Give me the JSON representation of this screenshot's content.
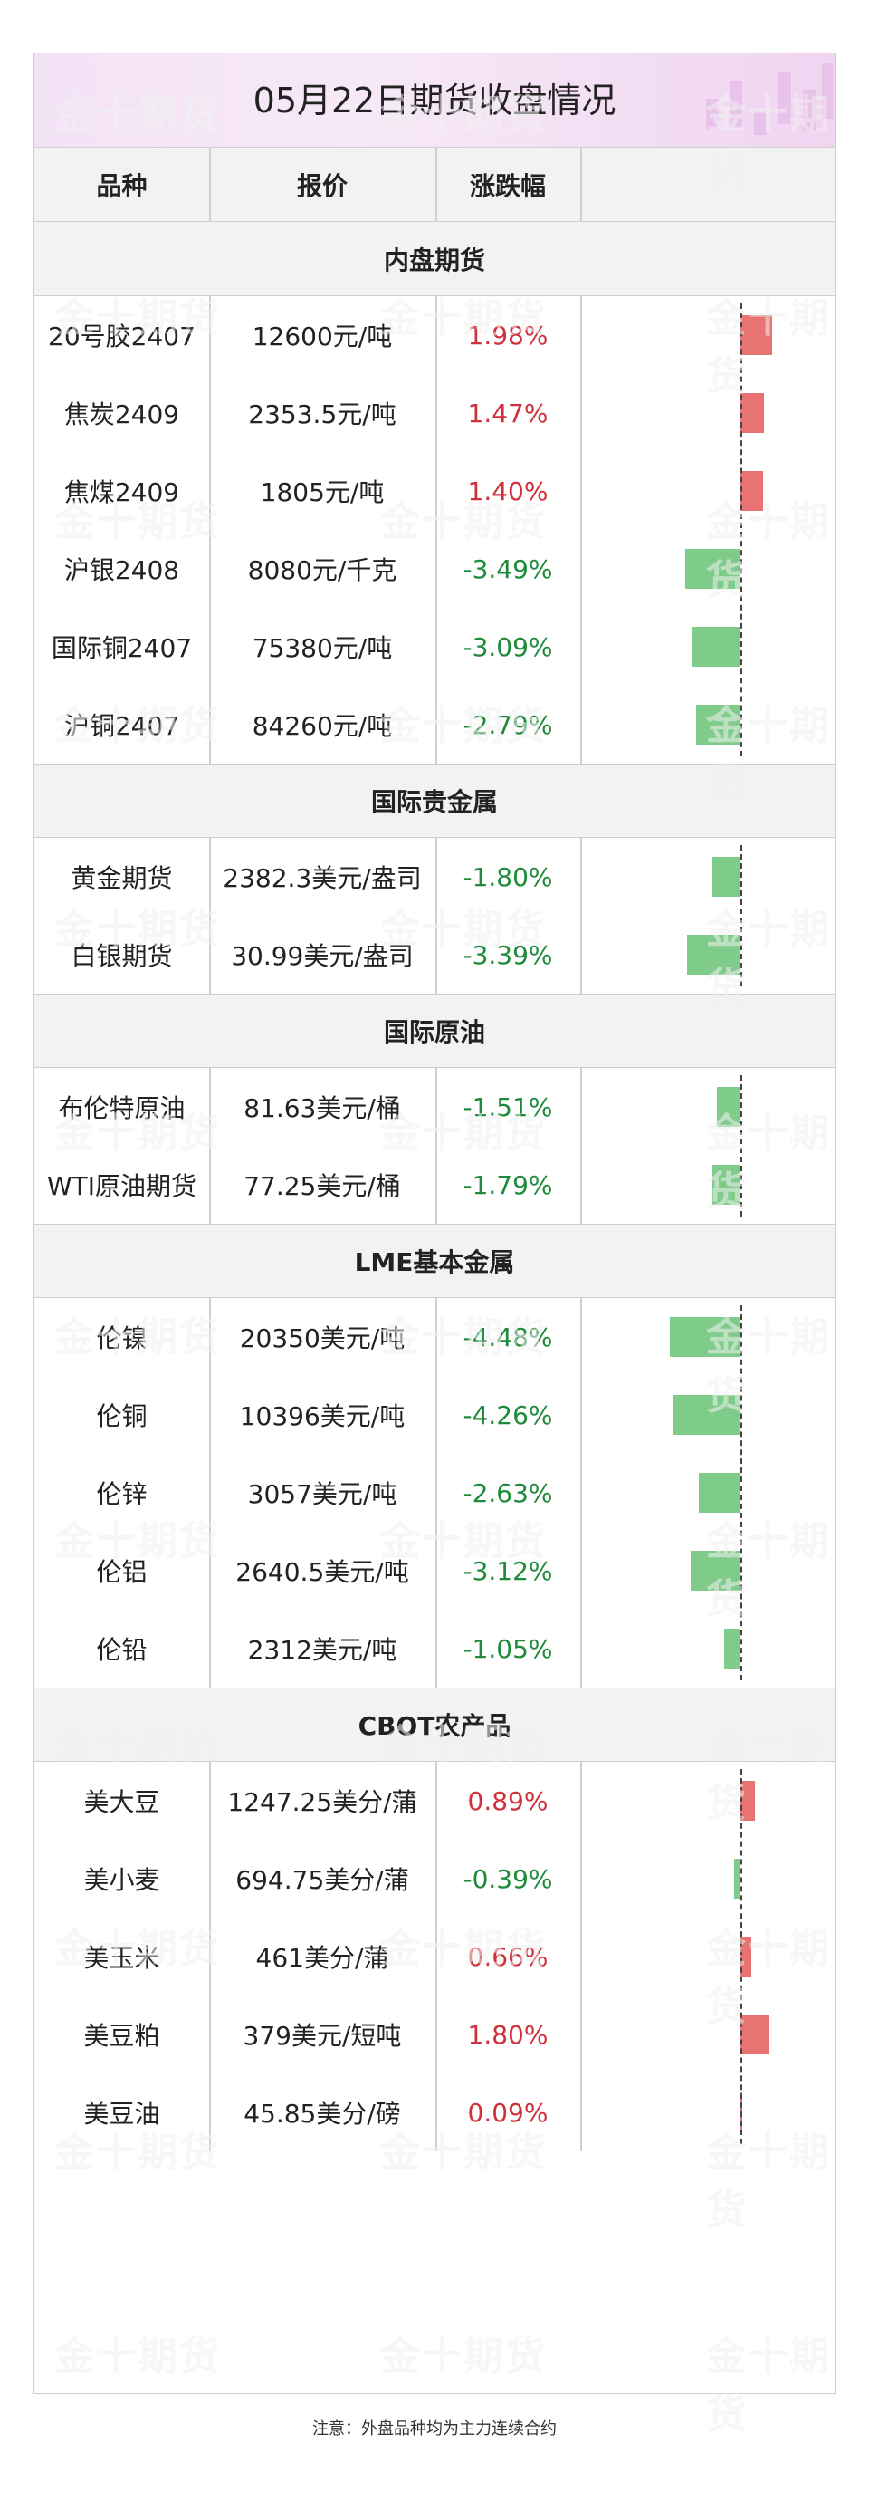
{
  "title": "05月22日期货收盘情况",
  "headers": {
    "name": "品种",
    "price": "报价",
    "change": "涨跌幅"
  },
  "watermark": "金十期货",
  "sections": [
    {
      "title": "内盘期货",
      "rows": [
        {
          "name": "20号胶2407",
          "price": "12600元/吨",
          "change": "1.98%",
          "value": 1.98
        },
        {
          "name": "焦炭2409",
          "price": "2353.5元/吨",
          "change": "1.47%",
          "value": 1.47
        },
        {
          "name": "焦煤2409",
          "price": "1805元/吨",
          "change": "1.40%",
          "value": 1.4
        },
        {
          "name": "沪银2408",
          "price": "8080元/千克",
          "change": "-3.49%",
          "value": -3.49
        },
        {
          "name": "国际铜2407",
          "price": "75380元/吨",
          "change": "-3.09%",
          "value": -3.09
        },
        {
          "name": "沪铜2407",
          "price": "84260元/吨",
          "change": "-2.79%",
          "value": -2.79
        }
      ]
    },
    {
      "title": "国际贵金属",
      "rows": [
        {
          "name": "黄金期货",
          "price": "2382.3美元/盎司",
          "change": "-1.80%",
          "value": -1.8
        },
        {
          "name": "白银期货",
          "price": "30.99美元/盎司",
          "change": "-3.39%",
          "value": -3.39
        }
      ]
    },
    {
      "title": "国际原油",
      "rows": [
        {
          "name": "布伦特原油",
          "price": "81.63美元/桶",
          "change": "-1.51%",
          "value": -1.51
        },
        {
          "name": "WTI原油期货",
          "price": "77.25美元/桶",
          "change": "-1.79%",
          "value": -1.79
        }
      ]
    },
    {
      "title": "LME基本金属",
      "rows": [
        {
          "name": "伦镍",
          "price": "20350美元/吨",
          "change": "-4.48%",
          "value": -4.48
        },
        {
          "name": "伦铜",
          "price": "10396美元/吨",
          "change": "-4.26%",
          "value": -4.26
        },
        {
          "name": "伦锌",
          "price": "3057美元/吨",
          "change": "-2.63%",
          "value": -2.63
        },
        {
          "name": "伦铝",
          "price": "2640.5美元/吨",
          "change": "-3.12%",
          "value": -3.12
        },
        {
          "name": "伦铅",
          "price": "2312美元/吨",
          "change": "-1.05%",
          "value": -1.05
        }
      ]
    },
    {
      "title": "CBOT农产品",
      "rows": [
        {
          "name": "美大豆",
          "price": "1247.25美分/蒲",
          "change": "0.89%",
          "value": 0.89
        },
        {
          "name": "美小麦",
          "price": "694.75美分/蒲",
          "change": "-0.39%",
          "value": -0.39
        },
        {
          "name": "美玉米",
          "price": "461美分/蒲",
          "change": "0.66%",
          "value": 0.66
        },
        {
          "name": "美豆粕",
          "price": "379美元/短吨",
          "change": "1.80%",
          "value": 1.8
        },
        {
          "name": "美豆油",
          "price": "45.85美分/磅",
          "change": "0.09%",
          "value": 0.09
        }
      ]
    }
  ],
  "colors": {
    "up": "#d0303a",
    "down": "#1f8a3a",
    "up_bar": "#e87373",
    "down_bar": "#7fcc8a"
  },
  "note": "注意：外盘品种均为主力连续合约"
}
